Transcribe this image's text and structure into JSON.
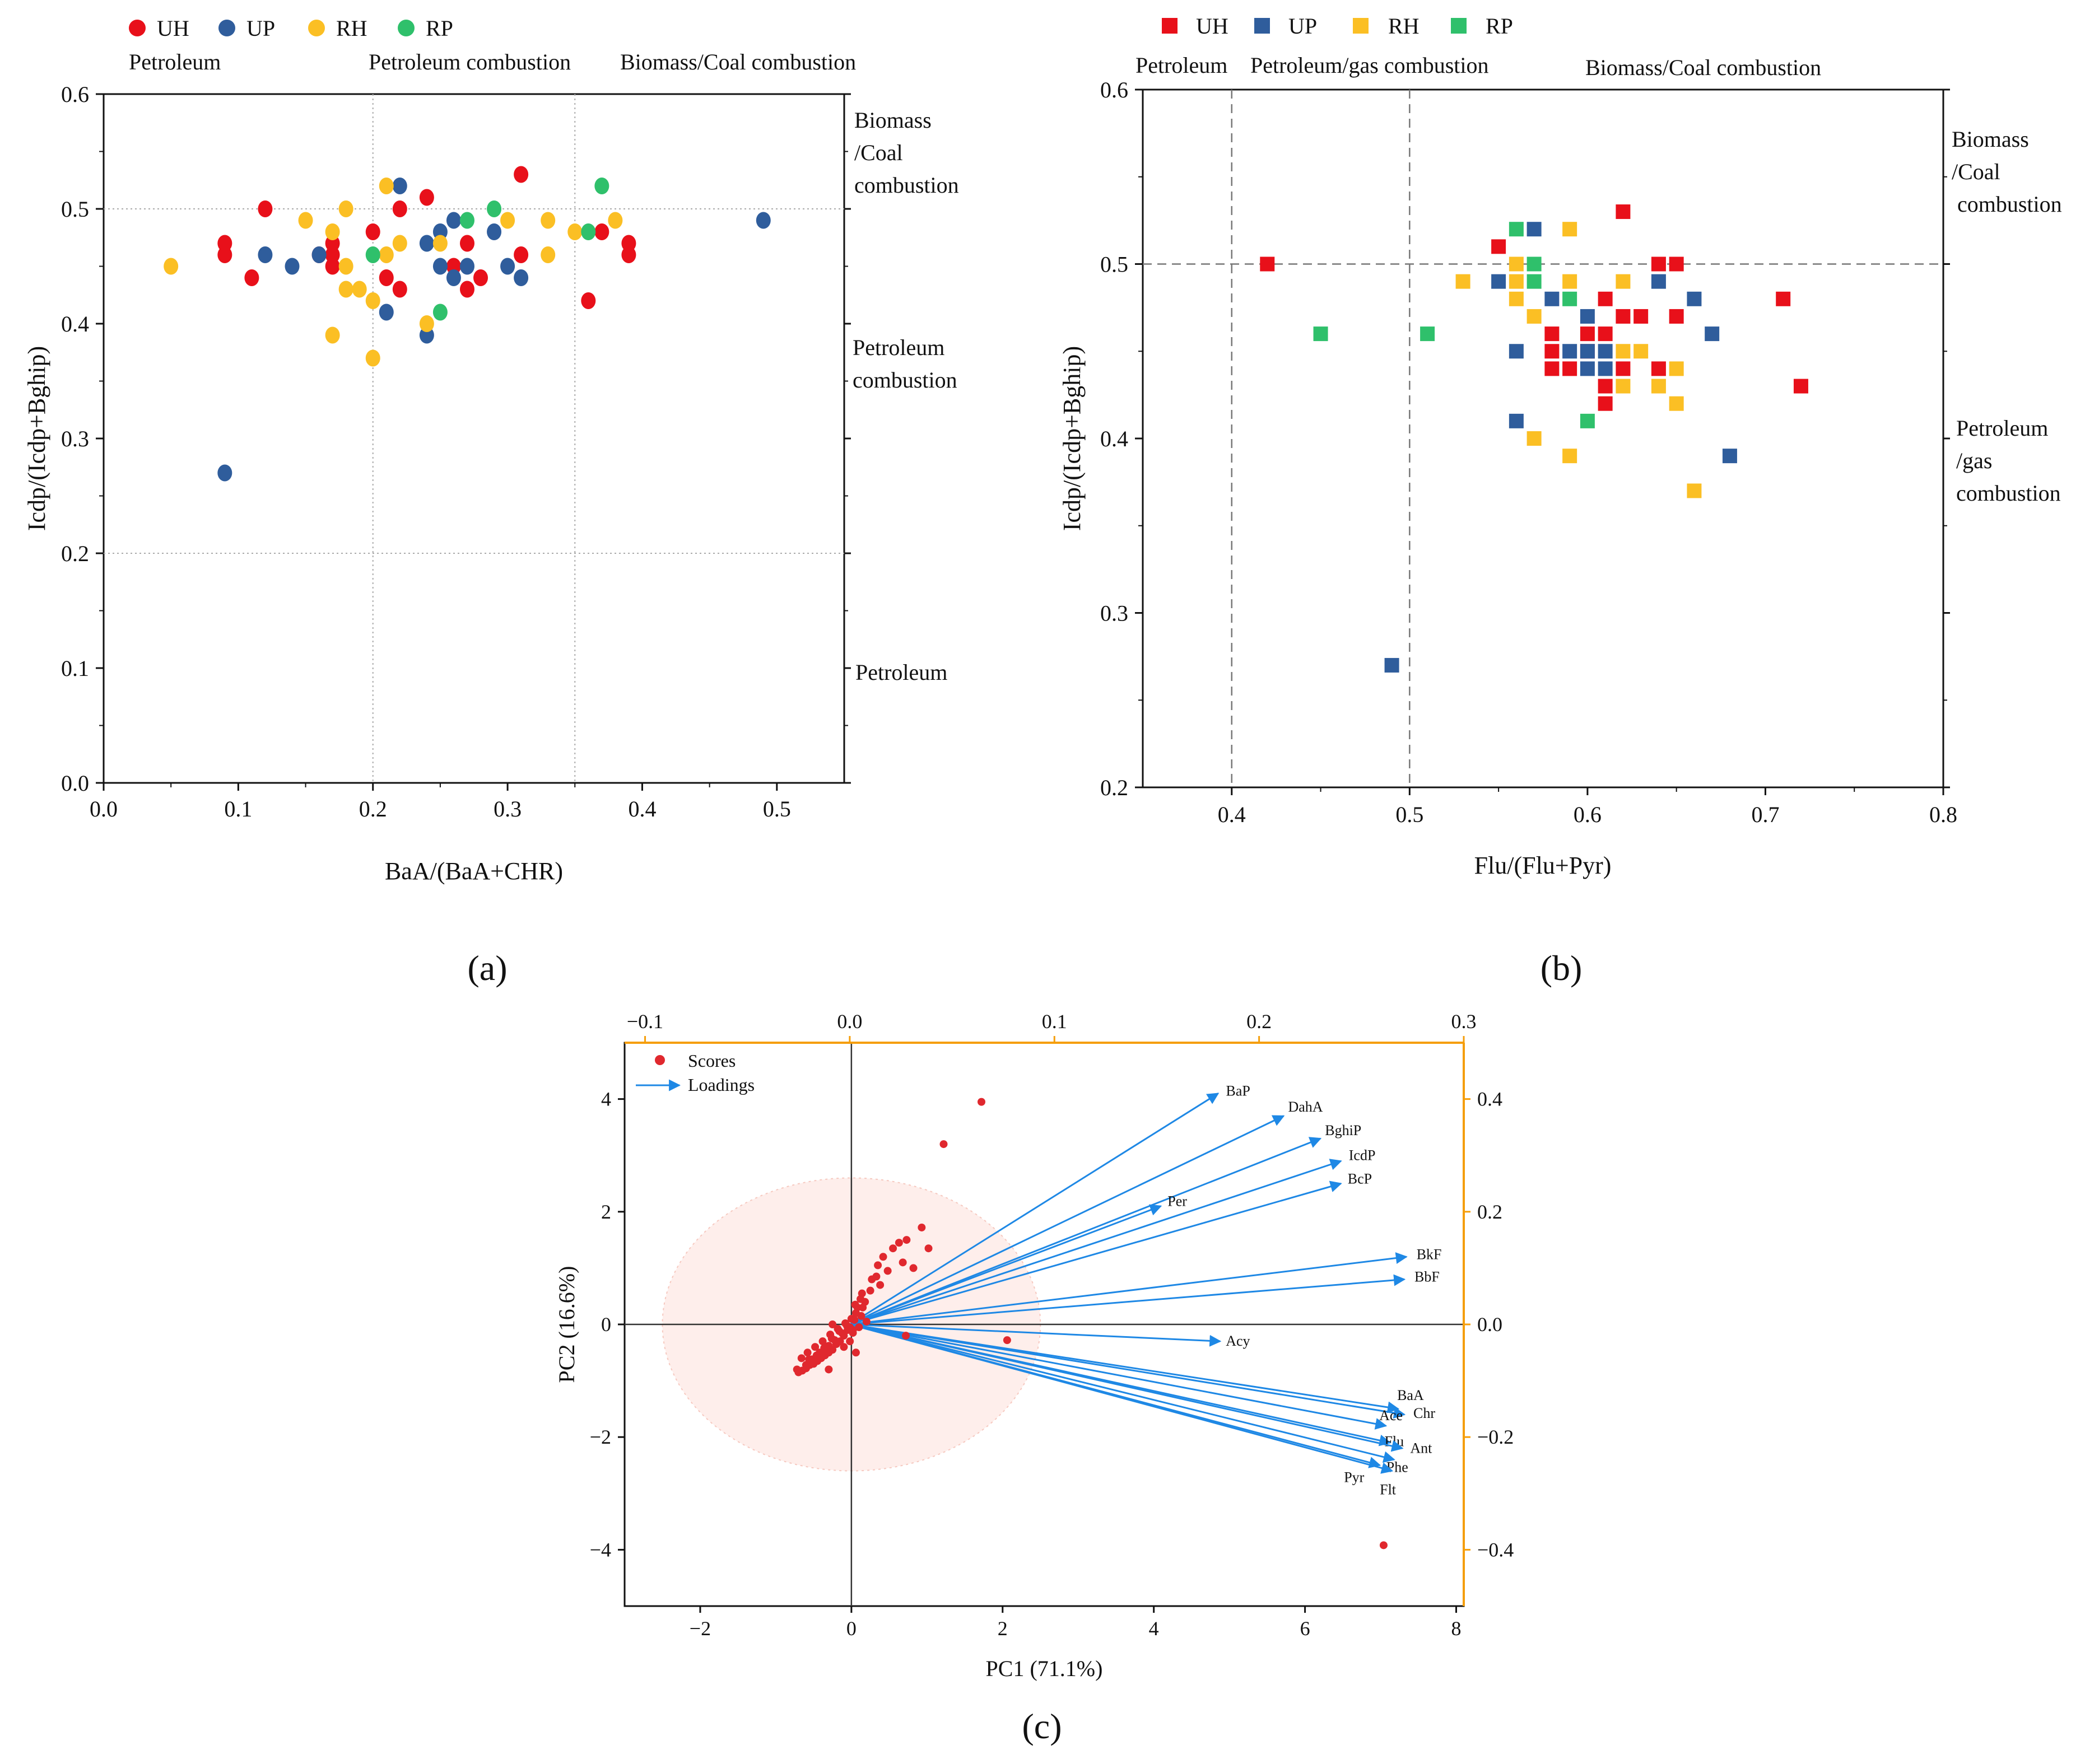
{
  "colors": {
    "UH": "#e8101a",
    "UP": "#2f5d9c",
    "RH": "#fbbf24",
    "RP": "#2fc06b",
    "scores": "#e0282e",
    "loadings": "#1e88e5",
    "top_axis": "#f59e0b",
    "ellipse": "#fde8e4"
  },
  "chart_data": [
    {
      "type": "scatter",
      "panel_label": "(a)",
      "xlabel": "BaA/(BaA+CHR)",
      "ylabel": "Icdp/(Icdp+Bghip)",
      "xlim": [
        0,
        0.55
      ],
      "ylim": [
        0,
        0.6
      ],
      "xticks": [
        "0.0",
        "0.1",
        "0.2",
        "0.3",
        "0.4",
        "0.5"
      ],
      "yticks": [
        "0.0",
        "0.1",
        "0.2",
        "0.3",
        "0.4",
        "0.5",
        "0.6"
      ],
      "legend": [
        "UH",
        "UP",
        "RH",
        "RP"
      ],
      "top_zone_labels": [
        "Petroleum",
        "Petroleum combustion",
        "Biomass/Coal combustion"
      ],
      "right_zone_labels": [
        [
          "Biomass",
          "/Coal",
          "combustion"
        ],
        [
          "Petroleum",
          "combustion"
        ],
        [
          "Petroleum"
        ]
      ],
      "reference_lines": {
        "x": [
          0.2,
          0.35
        ],
        "y": [
          0.2,
          0.5
        ]
      },
      "series": [
        {
          "name": "UH",
          "x": [
            0.09,
            0.09,
            0.11,
            0.12,
            0.16,
            0.17,
            0.17,
            0.17,
            0.2,
            0.21,
            0.22,
            0.22,
            0.24,
            0.26,
            0.27,
            0.27,
            0.28,
            0.31,
            0.31,
            0.36,
            0.37,
            0.39,
            0.39
          ],
          "y": [
            0.47,
            0.46,
            0.44,
            0.5,
            0.46,
            0.47,
            0.46,
            0.45,
            0.48,
            0.44,
            0.43,
            0.5,
            0.51,
            0.45,
            0.47,
            0.43,
            0.44,
            0.53,
            0.46,
            0.42,
            0.48,
            0.47,
            0.46
          ]
        },
        {
          "name": "UP",
          "x": [
            0.09,
            0.12,
            0.14,
            0.16,
            0.21,
            0.22,
            0.24,
            0.24,
            0.25,
            0.25,
            0.26,
            0.26,
            0.27,
            0.29,
            0.3,
            0.31,
            0.49
          ],
          "y": [
            0.27,
            0.46,
            0.45,
            0.46,
            0.41,
            0.52,
            0.47,
            0.39,
            0.48,
            0.45,
            0.49,
            0.44,
            0.45,
            0.48,
            0.45,
            0.44,
            0.49
          ]
        },
        {
          "name": "RH",
          "x": [
            0.05,
            0.15,
            0.17,
            0.17,
            0.18,
            0.18,
            0.18,
            0.19,
            0.2,
            0.2,
            0.21,
            0.21,
            0.22,
            0.24,
            0.25,
            0.3,
            0.33,
            0.33,
            0.35,
            0.38
          ],
          "y": [
            0.45,
            0.49,
            0.48,
            0.39,
            0.5,
            0.45,
            0.43,
            0.43,
            0.42,
            0.37,
            0.52,
            0.46,
            0.47,
            0.4,
            0.47,
            0.49,
            0.49,
            0.46,
            0.48,
            0.49
          ]
        },
        {
          "name": "RP",
          "x": [
            0.2,
            0.25,
            0.27,
            0.29,
            0.36,
            0.37
          ],
          "y": [
            0.46,
            0.41,
            0.49,
            0.5,
            0.48,
            0.52
          ]
        }
      ]
    },
    {
      "type": "scatter",
      "panel_label": "(b)",
      "xlabel": "Flu/(Flu+Pyr)",
      "ylabel": "Icdp/(Icdp+Bghip)",
      "xlim": [
        0.35,
        0.8
      ],
      "ylim": [
        0.2,
        0.6
      ],
      "xticks": [
        "0.4",
        "0.5",
        "0.6",
        "0.7",
        "0.8"
      ],
      "yticks": [
        "0.2",
        "0.3",
        "0.4",
        "0.5",
        "0.6"
      ],
      "legend": [
        "UH",
        "UP",
        "RH",
        "RP"
      ],
      "top_zone_labels": [
        "Petroleum",
        "Petroleum/gas combustion",
        "Biomass/Coal combustion"
      ],
      "right_zone_labels": [
        [
          "Biomass",
          "/Coal",
          "combustion"
        ],
        [
          "Petroleum",
          "/gas",
          "combustion"
        ]
      ],
      "reference_lines": {
        "x": [
          0.4,
          0.5
        ],
        "y": [
          0.5
        ]
      },
      "series": [
        {
          "name": "UH",
          "x": [
            0.42,
            0.55,
            0.58,
            0.58,
            0.58,
            0.59,
            0.6,
            0.6,
            0.61,
            0.61,
            0.61,
            0.61,
            0.62,
            0.62,
            0.62,
            0.63,
            0.64,
            0.64,
            0.65,
            0.65,
            0.71,
            0.72
          ],
          "y": [
            0.5,
            0.51,
            0.46,
            0.45,
            0.44,
            0.44,
            0.46,
            0.45,
            0.48,
            0.46,
            0.43,
            0.42,
            0.53,
            0.47,
            0.44,
            0.47,
            0.5,
            0.44,
            0.5,
            0.47,
            0.48,
            0.43
          ]
        },
        {
          "name": "UP",
          "x": [
            0.49,
            0.55,
            0.56,
            0.56,
            0.57,
            0.58,
            0.59,
            0.6,
            0.6,
            0.6,
            0.61,
            0.61,
            0.64,
            0.66,
            0.67,
            0.68
          ],
          "y": [
            0.27,
            0.49,
            0.45,
            0.41,
            0.52,
            0.48,
            0.45,
            0.47,
            0.45,
            0.44,
            0.45,
            0.44,
            0.49,
            0.48,
            0.46,
            0.39
          ]
        },
        {
          "name": "RH",
          "x": [
            0.53,
            0.56,
            0.56,
            0.56,
            0.57,
            0.57,
            0.59,
            0.59,
            0.59,
            0.62,
            0.62,
            0.62,
            0.63,
            0.64,
            0.65,
            0.65,
            0.66
          ],
          "y": [
            0.49,
            0.5,
            0.49,
            0.48,
            0.47,
            0.4,
            0.52,
            0.49,
            0.39,
            0.49,
            0.45,
            0.43,
            0.45,
            0.43,
            0.44,
            0.42,
            0.37
          ]
        },
        {
          "name": "RP",
          "x": [
            0.45,
            0.51,
            0.56,
            0.57,
            0.57,
            0.59,
            0.6
          ],
          "y": [
            0.46,
            0.46,
            0.52,
            0.5,
            0.49,
            0.48,
            0.41
          ]
        }
      ]
    },
    {
      "type": "biplot",
      "panel_label": "(c)",
      "xlabel": "PC1 (71.1%)",
      "ylabel": "PC2 (16.6%)",
      "xlim": [
        -3,
        8.1
      ],
      "ylim": [
        -5,
        5
      ],
      "xticks": [
        "−2",
        "0",
        "2",
        "4",
        "6",
        "8"
      ],
      "yticks": [
        "−4",
        "−2",
        "0",
        "2",
        "4"
      ],
      "top_xlim": [
        -0.11,
        0.3
      ],
      "top_xticks": [
        "−0.1",
        "0.0",
        "0.1",
        "0.2",
        "0.3"
      ],
      "right_ylim": [
        -0.5,
        0.5
      ],
      "right_yticks": [
        "−0.4",
        "−0.2",
        "0.0",
        "0.2",
        "0.4"
      ],
      "legend": [
        "Scores",
        "Loadings"
      ],
      "confidence_ellipse": {
        "center": [
          0,
          0
        ],
        "radius_x": 2.5,
        "radius_y": 2.6
      },
      "scores": {
        "x": [
          1.72,
          1.22,
          0.93,
          0.73,
          1.02,
          0.63,
          0.55,
          0.35,
          0.42,
          0.68,
          0.27,
          0.14,
          0.38,
          0.82,
          0.25,
          0.12,
          0.33,
          0.48,
          0.18,
          0.05,
          2.06,
          0.72,
          7.04,
          0.0,
          0.06,
          0.02,
          -0.02,
          0.1,
          0.2,
          0.13,
          0.08,
          0.06,
          -0.05,
          -0.1,
          -0.15,
          -0.2,
          -0.25,
          -0.3,
          -0.35,
          -0.4,
          -0.45,
          -0.5,
          -0.55,
          -0.6,
          -0.65,
          -0.7,
          -0.72,
          -0.6,
          -0.52,
          -0.42,
          -0.3,
          -0.22,
          -0.12,
          -0.02,
          -0.08,
          -0.18,
          -0.28,
          -0.38,
          -0.48,
          -0.58,
          -0.66,
          -0.56,
          -0.46,
          -0.36,
          -0.26,
          -0.16,
          -0.06,
          0.04,
          -0.3,
          -0.25,
          -0.1,
          0.02,
          0.15
        ],
        "y": [
          3.95,
          3.2,
          1.72,
          1.5,
          1.35,
          1.45,
          1.35,
          1.05,
          1.2,
          1.1,
          0.8,
          0.55,
          0.7,
          1.0,
          0.6,
          0.45,
          0.85,
          0.95,
          0.4,
          0.35,
          -0.28,
          -0.2,
          -3.92,
          0.1,
          0.2,
          -0.15,
          -0.3,
          -0.05,
          0.05,
          0.15,
          0.3,
          -0.5,
          -0.1,
          -0.2,
          -0.3,
          -0.35,
          -0.45,
          -0.5,
          -0.55,
          -0.6,
          -0.65,
          -0.7,
          -0.72,
          -0.78,
          -0.82,
          -0.85,
          -0.8,
          -0.72,
          -0.62,
          -0.5,
          -0.38,
          -0.28,
          -0.16,
          -0.05,
          0.02,
          -0.08,
          -0.18,
          -0.3,
          -0.4,
          -0.5,
          -0.6,
          -0.62,
          -0.55,
          -0.42,
          -0.25,
          -0.12,
          -0.02,
          0.08,
          -0.8,
          0.0,
          -0.4,
          -0.1,
          0.3
        ]
      },
      "loadings": [
        {
          "name": "BaP",
          "x": 0.18,
          "y": 0.41
        },
        {
          "name": "DahA",
          "x": 0.212,
          "y": 0.37
        },
        {
          "name": "BghiP",
          "x": 0.23,
          "y": 0.33
        },
        {
          "name": "IcdP",
          "x": 0.24,
          "y": 0.29
        },
        {
          "name": "BcP",
          "x": 0.24,
          "y": 0.25
        },
        {
          "name": "Per",
          "x": 0.152,
          "y": 0.21
        },
        {
          "name": "BkF",
          "x": 0.272,
          "y": 0.12
        },
        {
          "name": "BbF",
          "x": 0.271,
          "y": 0.08
        },
        {
          "name": "Acy",
          "x": 0.181,
          "y": -0.03
        },
        {
          "name": "BaA",
          "x": 0.268,
          "y": -0.15
        },
        {
          "name": "Chr",
          "x": 0.271,
          "y": -0.16
        },
        {
          "name": "Ace",
          "x": 0.262,
          "y": -0.18
        },
        {
          "name": "Flu",
          "x": 0.264,
          "y": -0.21
        },
        {
          "name": "Ant",
          "x": 0.27,
          "y": -0.22
        },
        {
          "name": "Phe",
          "x": 0.266,
          "y": -0.24
        },
        {
          "name": "Pyr",
          "x": 0.259,
          "y": -0.25
        },
        {
          "name": "Flt",
          "x": 0.265,
          "y": -0.26
        }
      ]
    }
  ]
}
